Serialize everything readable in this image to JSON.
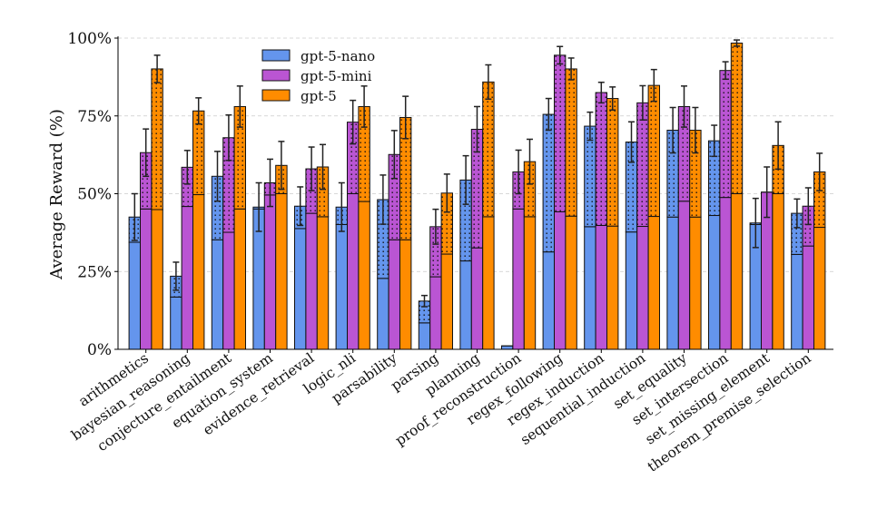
{
  "chart_data": {
    "type": "bar",
    "stacked_note_free": true,
    "ylabel": "Average Reward (%)",
    "ylim": [
      0,
      100
    ],
    "yticks": [
      "0%",
      "25%",
      "50%",
      "75%",
      "100%"
    ],
    "grid": true,
    "legend_placement": "top-left",
    "categories": [
      "arithmetics",
      "bayesian_reasoning",
      "conjecture_entailment",
      "equation_system",
      "evidence_retrieval",
      "logic_nli",
      "parsability",
      "parsing",
      "planning",
      "proof_reconstruction",
      "regex_following",
      "regex_induction",
      "sequential_induction",
      "set_equality",
      "set_intersection",
      "set_missing_element",
      "theorem_premise_selection"
    ],
    "series": [
      {
        "name": "gpt-5-nano",
        "color": "#6495ED",
        "values": [
          42.5,
          23.5,
          55.6,
          45.7,
          46.0,
          45.7,
          48.1,
          15.5,
          54.4,
          1.1,
          75.5,
          71.7,
          66.6,
          70.4,
          67.0,
          40.6,
          43.7
        ],
        "base": [
          34.4,
          16.8,
          35.2,
          45.1,
          38.8,
          40.1,
          22.8,
          8.5,
          28.4,
          1.1,
          31.3,
          39.4,
          37.7,
          42.5,
          43.0,
          40.1,
          30.5
        ],
        "error": [
          7.5,
          4.5,
          8.0,
          7.8,
          6.2,
          7.8,
          7.9,
          1.8,
          7.8,
          0,
          5.1,
          4.5,
          6.5,
          7.3,
          5.0,
          7.9,
          4.6
        ]
      },
      {
        "name": "gpt-5-mini",
        "color": "#BA55D3",
        "values": [
          63.2,
          58.5,
          68.0,
          53.5,
          58.0,
          73.0,
          62.6,
          39.4,
          70.7,
          57.0,
          94.5,
          82.5,
          79.2,
          78.0,
          89.6,
          50.5,
          46.0
        ],
        "base": [
          45.1,
          45.9,
          37.6,
          49.6,
          43.7,
          50.0,
          35.2,
          23.3,
          32.6,
          45.1,
          44.2,
          39.8,
          39.5,
          47.6,
          48.8,
          50.5,
          33.2
        ],
        "error": [
          7.6,
          5.4,
          7.3,
          7.6,
          7.0,
          7.0,
          7.7,
          5.6,
          7.3,
          7.0,
          2.8,
          3.3,
          5.5,
          6.6,
          2.8,
          8.1,
          5.9
        ]
      },
      {
        "name": "gpt-5",
        "color": "#FF8C00",
        "values": [
          90.1,
          76.6,
          78.0,
          59.1,
          58.6,
          78.0,
          74.5,
          50.2,
          85.9,
          60.3,
          90.1,
          80.6,
          84.8,
          70.4,
          98.4,
          65.5,
          57.0
        ],
        "base": [
          44.9,
          49.7,
          45.1,
          50.0,
          42.6,
          47.5,
          35.2,
          30.6,
          42.6,
          42.6,
          42.8,
          39.6,
          42.7,
          42.5,
          50.0,
          50.0,
          39.2
        ],
        "error": [
          4.4,
          4.2,
          6.6,
          7.7,
          7.2,
          6.6,
          6.8,
          6.1,
          5.5,
          7.2,
          3.5,
          3.7,
          5.1,
          7.3,
          1.0,
          7.6,
          6.0
        ]
      }
    ]
  }
}
